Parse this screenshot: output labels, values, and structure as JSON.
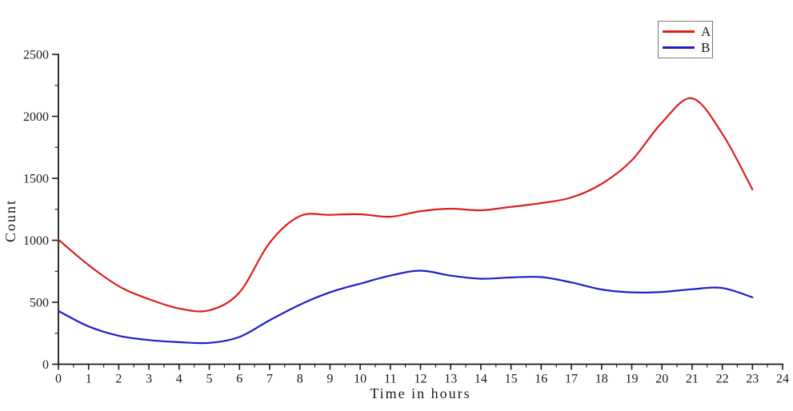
{
  "chart_data": {
    "type": "line",
    "title": "",
    "xlabel": "Time in hours",
    "ylabel": "Count",
    "xlim": [
      0,
      24
    ],
    "ylim": [
      0,
      2500
    ],
    "xticks": [
      0,
      1,
      2,
      3,
      4,
      5,
      6,
      7,
      8,
      9,
      10,
      11,
      12,
      13,
      14,
      15,
      16,
      17,
      18,
      19,
      20,
      21,
      22,
      23,
      24
    ],
    "yticks": [
      0,
      500,
      1000,
      1500,
      2000,
      2500
    ],
    "minor_x_step": 0.5,
    "minor_y_step": 250,
    "grid": false,
    "legend_position": "top-right",
    "x": [
      0,
      1,
      2,
      3,
      4,
      5,
      6,
      7,
      8,
      9,
      10,
      11,
      12,
      13,
      14,
      15,
      16,
      17,
      18,
      19,
      20,
      21,
      22,
      23
    ],
    "series": [
      {
        "name": "A",
        "color": "#dc1e1e",
        "values": [
          1005,
          800,
          630,
          525,
          450,
          435,
          580,
          980,
          1195,
          1205,
          1210,
          1190,
          1235,
          1255,
          1242,
          1270,
          1300,
          1345,
          1455,
          1645,
          1950,
          2145,
          1860,
          1410
        ]
      },
      {
        "name": "B",
        "color": "#1e1ec8",
        "values": [
          430,
          305,
          230,
          195,
          178,
          172,
          220,
          355,
          480,
          580,
          650,
          715,
          755,
          715,
          690,
          700,
          703,
          660,
          603,
          580,
          583,
          605,
          615,
          540
        ]
      }
    ],
    "axis_color": "#1a1a1a",
    "text_color": "#1a1a1a",
    "legend_border_color": "#7a7a7a"
  }
}
